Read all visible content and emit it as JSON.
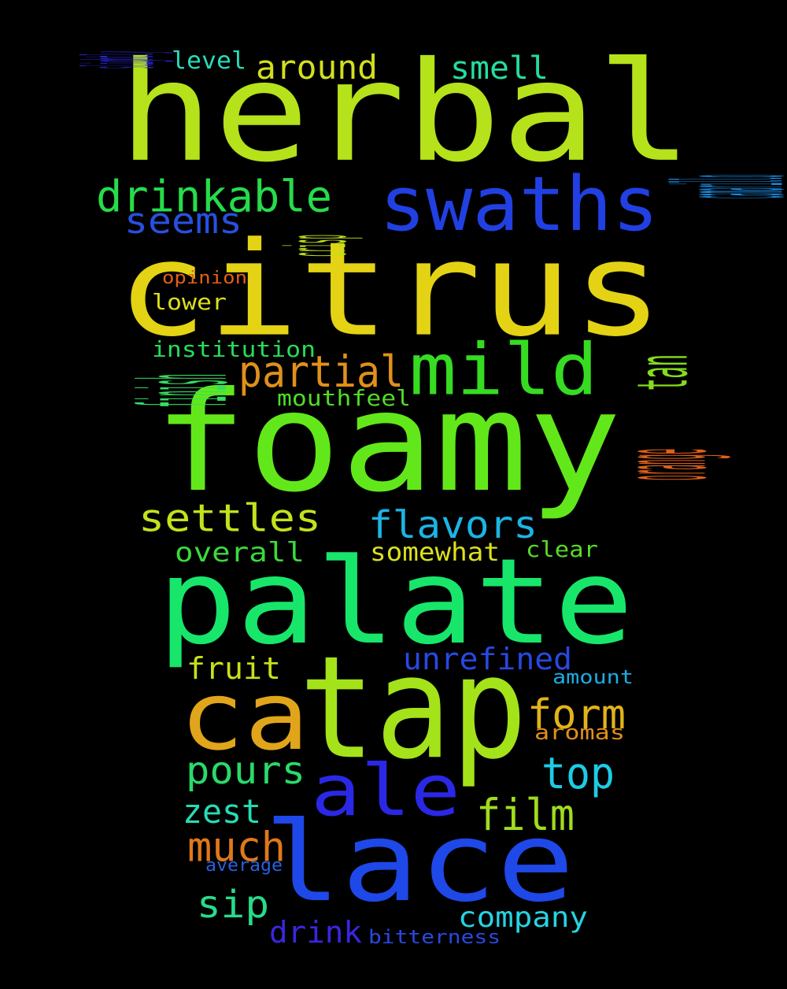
{
  "background_color": "#000000",
  "words": [
    {
      "text": "herbal",
      "color": "#b5e21a"
    },
    {
      "text": "citrus",
      "color": "#e3d314"
    },
    {
      "text": "foamy",
      "color": "#62e81a"
    },
    {
      "text": "palate",
      "color": "#18e66a"
    },
    {
      "text": "lace",
      "color": "#1f48e8"
    },
    {
      "text": "tap",
      "color": "#a4e21a"
    },
    {
      "text": "ca",
      "color": "#e0a51a"
    },
    {
      "text": "ale",
      "color": "#2a28e4"
    },
    {
      "text": "swaths",
      "color": "#2140e2"
    },
    {
      "text": "mild",
      "color": "#36dc22"
    },
    {
      "text": "drinkable",
      "color": "#26dc4a"
    },
    {
      "text": "seems",
      "color": "#2850e0"
    },
    {
      "text": "partial",
      "color": "#e0901a"
    },
    {
      "text": "settles",
      "color": "#c4e21c"
    },
    {
      "text": "flavors",
      "color": "#1cb4e4"
    },
    {
      "text": "form",
      "color": "#e0b41a"
    },
    {
      "text": "pours",
      "color": "#2ada6a"
    },
    {
      "text": "top",
      "color": "#1ccce4"
    },
    {
      "text": "film",
      "color": "#a0dc1c"
    },
    {
      "text": "much",
      "color": "#e0781a"
    },
    {
      "text": "zest",
      "color": "#26dcb4"
    },
    {
      "text": "sip",
      "color": "#26dc8a"
    },
    {
      "text": "unrefined",
      "color": "#2848e2"
    },
    {
      "text": "company",
      "color": "#26d4e2"
    },
    {
      "text": "drink",
      "color": "#3a26e2"
    },
    {
      "text": "around",
      "color": "#d2e01c"
    },
    {
      "text": "smell",
      "color": "#26dca0"
    },
    {
      "text": "level",
      "color": "#26dcb8"
    },
    {
      "text": "finish",
      "color": "#36dc62"
    },
    {
      "text": "tan",
      "color": "#84dc1c"
    },
    {
      "text": "orange",
      "color": "#e0601a"
    },
    {
      "text": "overall",
      "color": "#3ada3a"
    },
    {
      "text": "fruit",
      "color": "#c8e01c"
    },
    {
      "text": "somewhat",
      "color": "#dce01c"
    },
    {
      "text": "clear",
      "color": "#58dc26"
    },
    {
      "text": "institution",
      "color": "#26dc5a"
    },
    {
      "text": "mouthfeel",
      "color": "#50dc26"
    },
    {
      "text": "lower",
      "color": "#dce01c"
    },
    {
      "text": "crisp",
      "color": "#bce01c"
    },
    {
      "text": "opinion",
      "color": "#e0601a"
    },
    {
      "text": "camarillo",
      "color": "#1c8ce4"
    },
    {
      "text": "slightly",
      "color": "#2a26d2"
    },
    {
      "text": "aromas",
      "color": "#e0901a"
    },
    {
      "text": "amount",
      "color": "#1cace4"
    },
    {
      "text": "average",
      "color": "#2860e0"
    },
    {
      "text": "bitterness",
      "color": "#2848e2"
    }
  ]
}
